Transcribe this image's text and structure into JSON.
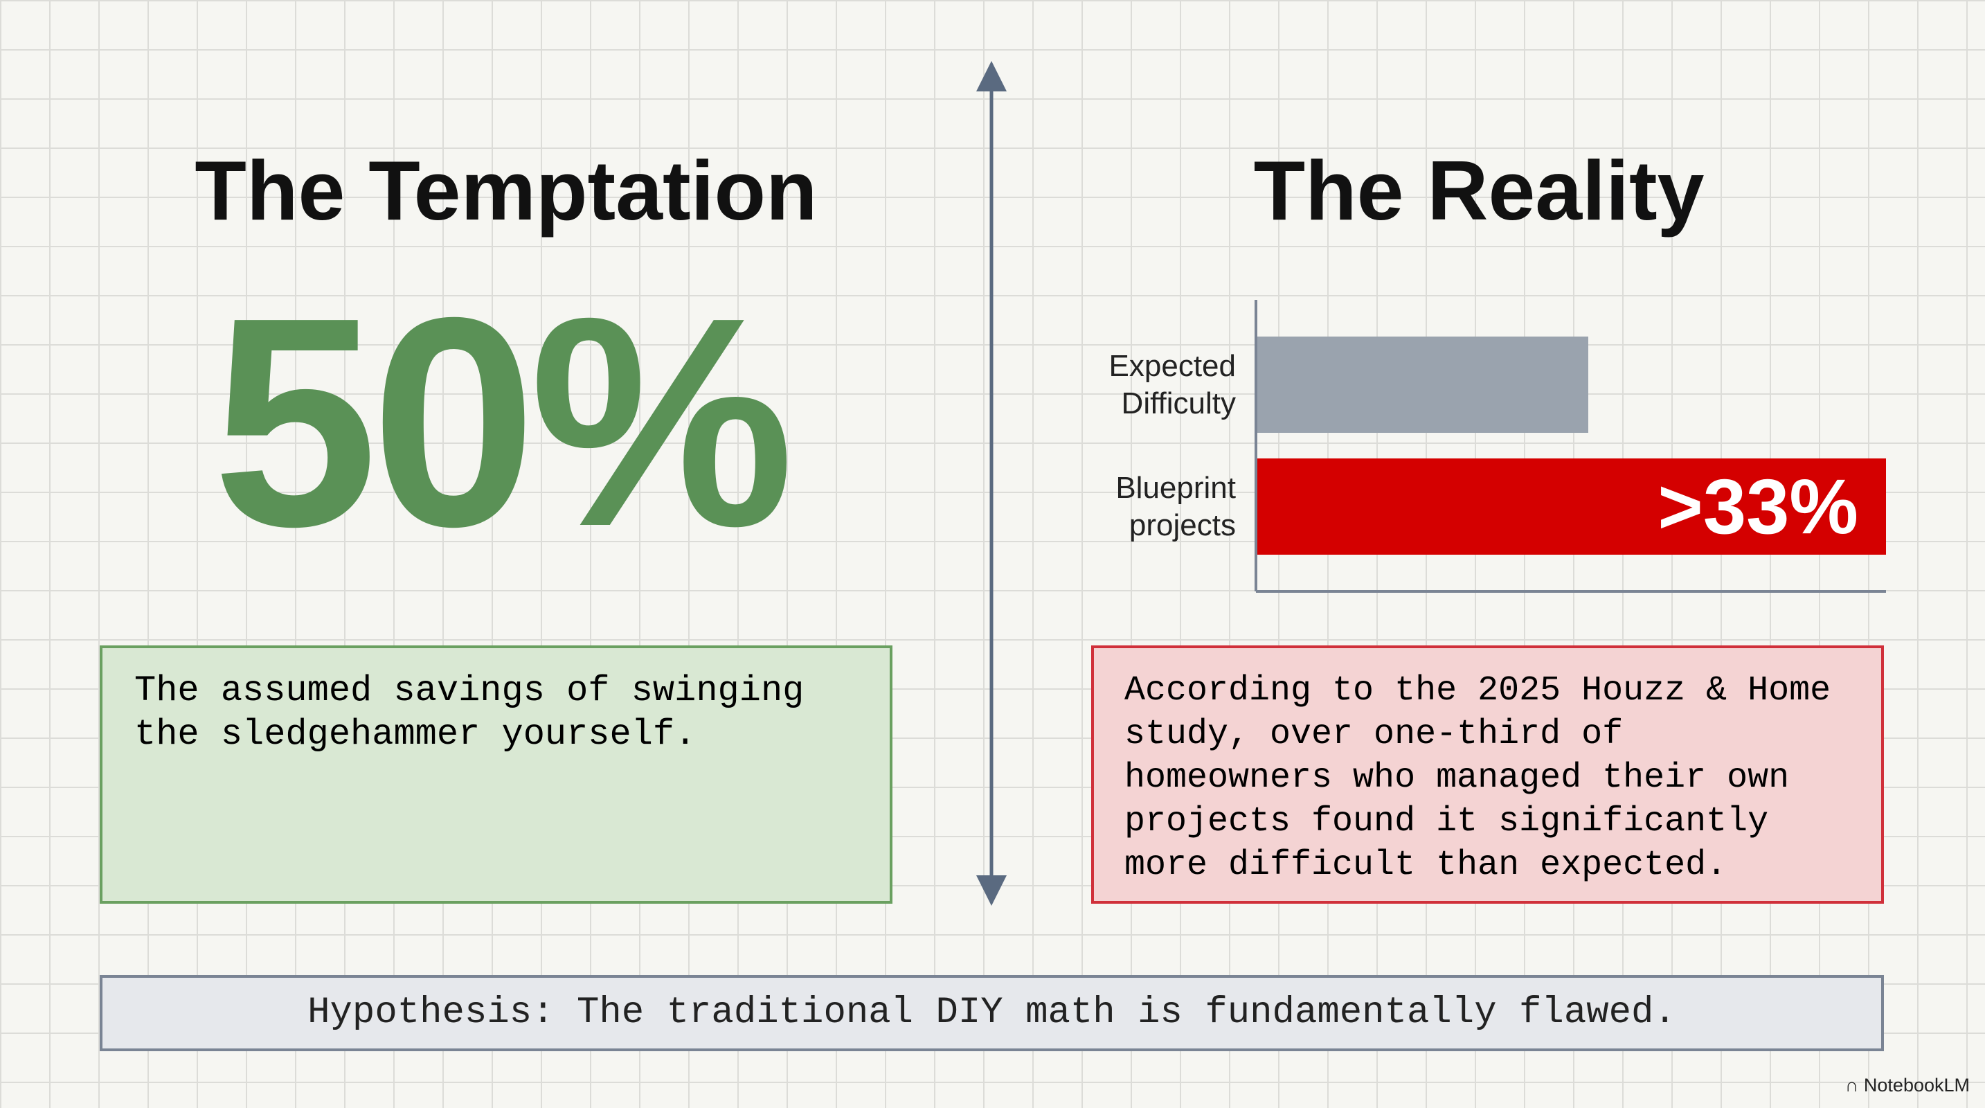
{
  "left": {
    "title": "The Temptation",
    "big_number": "50%",
    "caption": "The assumed savings of swinging the sledgehammer yourself."
  },
  "right": {
    "title": "The Reality",
    "caption": "According to the 2025 Houzz & Home study, over one-third of homeowners who managed their own projects found it significantly more difficult than expected."
  },
  "chart_data": {
    "type": "hbar",
    "categories": [
      "Expected Difficulty",
      "Blueprint projects"
    ],
    "values": [
      17.4,
      33
    ],
    "value_labels": [
      null,
      ">33%"
    ],
    "colors": [
      "#9aa3ae",
      "#d40000"
    ],
    "xlim": [
      0,
      33
    ]
  },
  "footer": {
    "hypothesis": "Hypothesis: The traditional DIY math is fundamentally flawed.",
    "brand": "NotebookLM"
  }
}
